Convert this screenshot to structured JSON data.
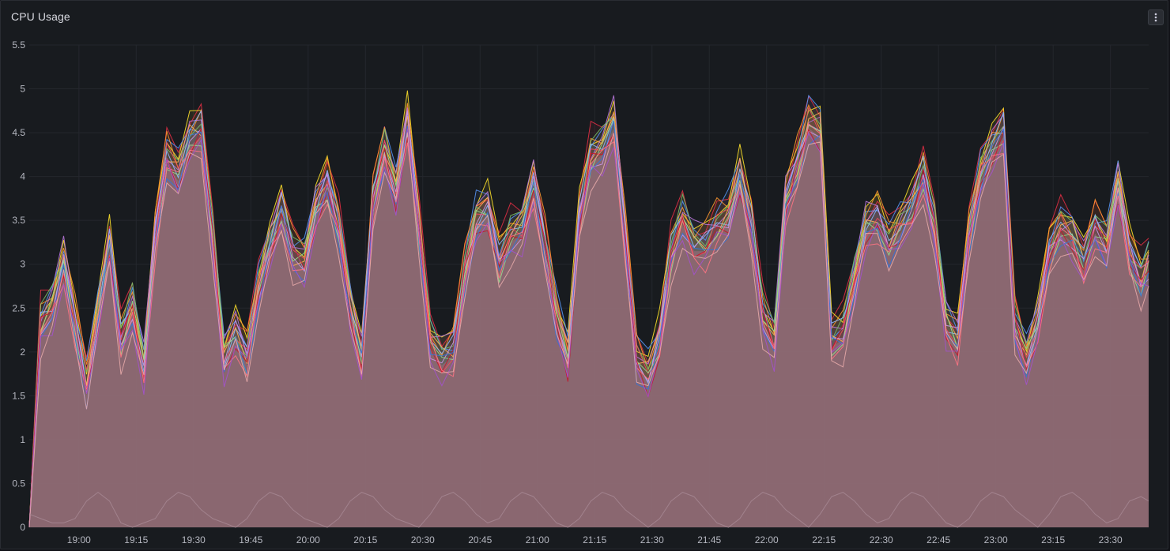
{
  "panel": {
    "title": "CPU Usage",
    "menu_icon": "kebab-menu-icon"
  },
  "chart_data": {
    "type": "area",
    "title": "CPU Usage",
    "xlabel": "",
    "ylabel": "",
    "ylim": [
      0,
      5.5
    ],
    "xlim": [
      "18:47",
      "23:40"
    ],
    "grid": true,
    "legend": "none",
    "y_ticks": [
      "0",
      "0.5",
      "1",
      "1.5",
      "2",
      "2.5",
      "3",
      "3.5",
      "4",
      "4.5",
      "5",
      "5.5"
    ],
    "x_ticks": [
      "19:00",
      "19:15",
      "19:30",
      "19:45",
      "20:00",
      "20:15",
      "20:30",
      "20:45",
      "21:00",
      "21:15",
      "21:30",
      "21:45",
      "22:00",
      "22:15",
      "22:30",
      "22:45",
      "23:00",
      "23:15",
      "23:30"
    ],
    "x": [
      "18:47",
      "18:50",
      "18:53",
      "18:56",
      "18:59",
      "19:02",
      "19:05",
      "19:08",
      "19:11",
      "19:14",
      "19:17",
      "19:20",
      "19:23",
      "19:26",
      "19:29",
      "19:32",
      "19:35",
      "19:38",
      "19:41",
      "19:44",
      "19:47",
      "19:50",
      "19:53",
      "19:56",
      "19:59",
      "20:02",
      "20:05",
      "20:08",
      "20:11",
      "20:14",
      "20:17",
      "20:20",
      "20:23",
      "20:26",
      "20:29",
      "20:32",
      "20:35",
      "20:38",
      "20:41",
      "20:44",
      "20:47",
      "20:50",
      "20:53",
      "20:56",
      "20:59",
      "21:02",
      "21:05",
      "21:08",
      "21:11",
      "21:14",
      "21:17",
      "21:20",
      "21:23",
      "21:26",
      "21:29",
      "21:32",
      "21:35",
      "21:38",
      "21:41",
      "21:44",
      "21:47",
      "21:50",
      "21:53",
      "21:56",
      "21:59",
      "22:02",
      "22:05",
      "22:08",
      "22:11",
      "22:14",
      "22:17",
      "22:20",
      "22:23",
      "22:26",
      "22:29",
      "22:32",
      "22:35",
      "22:38",
      "22:41",
      "22:44",
      "22:47",
      "22:50",
      "22:53",
      "22:56",
      "22:59",
      "23:02",
      "23:05",
      "23:08",
      "23:11",
      "23:14",
      "23:17",
      "23:20",
      "23:23",
      "23:26",
      "23:29",
      "23:32",
      "23:35",
      "23:38",
      "23:40"
    ],
    "base_values": [
      0,
      2.4,
      2.6,
      3.1,
      2.4,
      1.7,
      2.5,
      3.3,
      2.2,
      2.6,
      1.9,
      3.4,
      4.3,
      4.1,
      4.5,
      4.6,
      3.4,
      2.0,
      2.3,
      2.0,
      2.8,
      3.3,
      3.7,
      3.2,
      3.1,
      3.7,
      4.0,
      3.5,
      2.6,
      2.0,
      3.8,
      4.4,
      3.9,
      4.7,
      3.5,
      2.2,
      2.0,
      2.1,
      3.0,
      3.6,
      3.7,
      3.1,
      3.4,
      3.5,
      4.0,
      3.3,
      2.5,
      2.0,
      3.6,
      4.3,
      4.4,
      4.7,
      3.4,
      2.0,
      1.8,
      2.2,
      3.2,
      3.6,
      3.3,
      3.3,
      3.5,
      3.6,
      4.1,
      3.5,
      2.5,
      2.2,
      3.8,
      4.2,
      4.7,
      4.6,
      2.2,
      2.3,
      2.9,
      3.5,
      3.6,
      3.3,
      3.5,
      3.7,
      4.1,
      3.5,
      2.4,
      2.2,
      3.4,
      4.1,
      4.4,
      4.6,
      2.4,
      2.0,
      2.4,
      3.2,
      3.5,
      3.4,
      3.1,
      3.5,
      3.3,
      4.0,
      3.2,
      2.9,
      3.1
    ],
    "series": [
      {
        "color": "#e02f44",
        "offset": 0.15
      },
      {
        "color": "#fade2a",
        "offset": 0.12
      },
      {
        "color": "#5794f2",
        "offset": 0.08
      },
      {
        "color": "#ff9830",
        "offset": 0.1
      },
      {
        "color": "#b877d9",
        "offset": 0.05
      },
      {
        "color": "#73bf69",
        "offset": 0.02
      },
      {
        "color": "#8ab8ff",
        "offset": -0.02
      },
      {
        "color": "#ffb357",
        "offset": -0.05
      },
      {
        "color": "#f2495c",
        "offset": -0.08
      },
      {
        "color": "#ca95e5",
        "offset": -0.1
      },
      {
        "color": "#96d98d",
        "offset": -0.13
      },
      {
        "color": "#c4162a",
        "offset": -0.16
      },
      {
        "color": "#3274d9",
        "offset": -0.19
      },
      {
        "color": "#ff7383",
        "offset": -0.22
      },
      {
        "color": "#a352cc",
        "offset": -0.25
      },
      {
        "color": "#e6a8a8",
        "offset": -0.3
      }
    ],
    "low_series": {
      "color": "#a88a95",
      "values": [
        0.15,
        0.1,
        0.05,
        0.05,
        0.1,
        0.3,
        0.4,
        0.3,
        0.05,
        0.0,
        0.05,
        0.1,
        0.3,
        0.4,
        0.35,
        0.2,
        0.1,
        0.05,
        0.0,
        0.1,
        0.3,
        0.4,
        0.35,
        0.2,
        0.1,
        0.05,
        0.0,
        0.1,
        0.3,
        0.4,
        0.35,
        0.2,
        0.1,
        0.05,
        0.0,
        0.15,
        0.35,
        0.4,
        0.3,
        0.15,
        0.05,
        0.1,
        0.3,
        0.4,
        0.35,
        0.2,
        0.05,
        0.0,
        0.1,
        0.3,
        0.4,
        0.35,
        0.2,
        0.1,
        0.0,
        0.1,
        0.3,
        0.4,
        0.35,
        0.2,
        0.05,
        0.0,
        0.1,
        0.3,
        0.4,
        0.35,
        0.2,
        0.1,
        0.0,
        0.15,
        0.35,
        0.4,
        0.3,
        0.15,
        0.05,
        0.1,
        0.3,
        0.4,
        0.35,
        0.2,
        0.05,
        0.0,
        0.1,
        0.3,
        0.4,
        0.35,
        0.2,
        0.1,
        0.0,
        0.15,
        0.35,
        0.4,
        0.3,
        0.15,
        0.05,
        0.1,
        0.3,
        0.35,
        0.3
      ]
    },
    "fill_color": "#8b6872"
  }
}
